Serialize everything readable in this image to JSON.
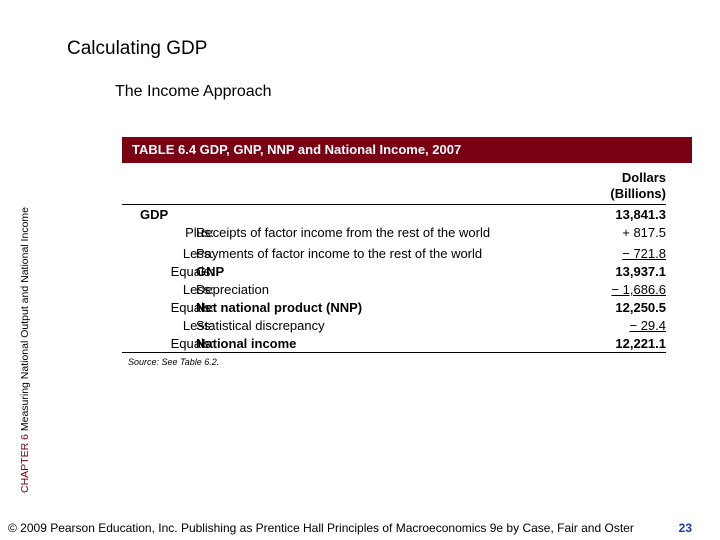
{
  "slide": {
    "title": "Calculating GDP",
    "subtitle": "The Income Approach",
    "side_label_chapter": "CHAPTER 6",
    "side_label_text": "Measuring National Output and National Income"
  },
  "table": {
    "header": "TABLE 6.4  GDP, GNP, NNP and National Income, 2007",
    "column_header_line1": "Dollars",
    "column_header_line2": "(Billions)",
    "rows": [
      {
        "label": "",
        "desc": "GDP",
        "value": "13,841.3"
      },
      {
        "label": "Plus:",
        "desc": "Receipts of factor income from the rest of the world",
        "value": "+ 817.5"
      },
      {
        "label": "Less:",
        "desc": "Payments of factor income to the rest of the world",
        "value": "− 721.8"
      },
      {
        "label": "Equals:",
        "desc": "GNP",
        "value": "13,937.1"
      },
      {
        "label": "Less:",
        "desc": "Depreciation",
        "value": "− 1,686.6"
      },
      {
        "label": "Equals:",
        "desc": "Net national product (NNP)",
        "value": "12,250.5"
      },
      {
        "label": "Less:",
        "desc": "Statistical discrepancy",
        "value": "− 29.4"
      },
      {
        "label": "Equals:",
        "desc": "National income",
        "value": "12,221.1"
      }
    ],
    "source": "Source:  See Table 6.2."
  },
  "footer": {
    "text": "© 2009 Pearson Education, Inc. Publishing as Prentice Hall  Principles of Macroeconomics 9e by Case, Fair and Oster",
    "page_number": "23"
  },
  "colors": {
    "header_bg": "#7a0014",
    "page_number": "#1a3aa0"
  }
}
